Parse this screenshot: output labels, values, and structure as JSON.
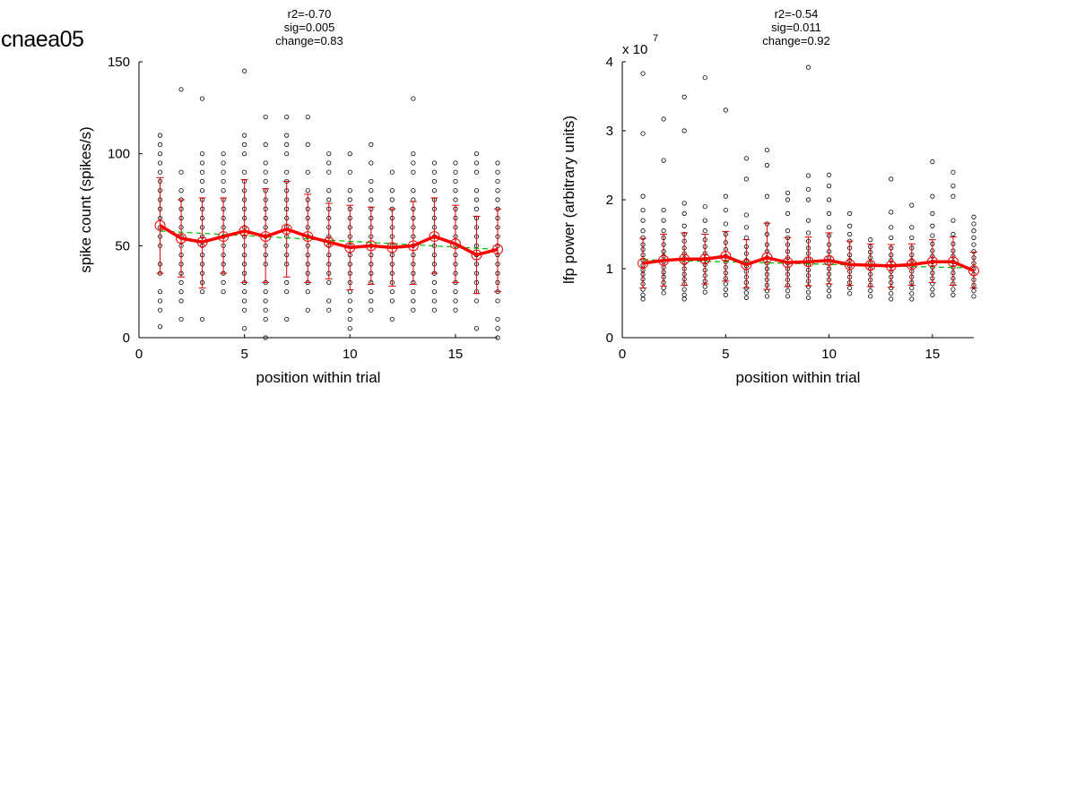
{
  "figure_title": "cnaea05",
  "colors": {
    "mean_line": "#ff0000",
    "errorbar": "#dd0000",
    "fit_line": "#00bb00",
    "points": "#000000"
  },
  "chart_data": [
    {
      "type": "scatter",
      "stats": [
        "r2=-0.70",
        "sig=0.005",
        "change=0.83"
      ],
      "xlabel": "position within trial",
      "ylabel": "spike count (spikes/s)",
      "exponent_label": "",
      "xlim": [
        0,
        17
      ],
      "ylim": [
        0,
        150
      ],
      "xticks": [
        0,
        5,
        10,
        15
      ],
      "xtick_labels": [
        "0",
        "5",
        "10",
        "15"
      ],
      "yticks": [
        0,
        50,
        100,
        150
      ],
      "ytick_labels": [
        "0",
        "50",
        "100",
        "150"
      ],
      "x": [
        1,
        2,
        3,
        4,
        5,
        6,
        7,
        8,
        9,
        10,
        11,
        12,
        13,
        14,
        15,
        16,
        17
      ],
      "mean": [
        61,
        54,
        52,
        55,
        58,
        55,
        59,
        55,
        52,
        49,
        50,
        49,
        50,
        55,
        51,
        45,
        48
      ],
      "err_lower": [
        35,
        33,
        27,
        35,
        30,
        30,
        33,
        30,
        32,
        26,
        29,
        28,
        29,
        35,
        30,
        24,
        25
      ],
      "err_upper": [
        87,
        75,
        76,
        76,
        86,
        81,
        85,
        78,
        73,
        72,
        71,
        70,
        74,
        76,
        72,
        66,
        70
      ],
      "fit_line": {
        "x": [
          1,
          17
        ],
        "y": [
          58,
          48
        ]
      },
      "points": [
        [
          6,
          15,
          20,
          25,
          35,
          40,
          50,
          55,
          60,
          65,
          70,
          75,
          80,
          85,
          90,
          95,
          100,
          105,
          110
        ],
        [
          10,
          20,
          25,
          30,
          35,
          40,
          45,
          50,
          55,
          60,
          65,
          70,
          75,
          80,
          90,
          135
        ],
        [
          10,
          25,
          30,
          35,
          40,
          45,
          50,
          55,
          60,
          65,
          70,
          75,
          80,
          85,
          90,
          95,
          100,
          130
        ],
        [
          25,
          30,
          35,
          40,
          45,
          50,
          55,
          60,
          65,
          70,
          75,
          80,
          85,
          90,
          95,
          100
        ],
        [
          5,
          15,
          20,
          25,
          30,
          35,
          40,
          45,
          50,
          55,
          60,
          65,
          70,
          75,
          80,
          85,
          90,
          100,
          105,
          110,
          145
        ],
        [
          0,
          10,
          15,
          20,
          25,
          30,
          40,
          45,
          50,
          55,
          60,
          65,
          70,
          75,
          80,
          85,
          90,
          95,
          105,
          120
        ],
        [
          10,
          25,
          30,
          40,
          45,
          50,
          55,
          60,
          65,
          70,
          75,
          80,
          85,
          90,
          100,
          105,
          110,
          120
        ],
        [
          15,
          25,
          30,
          35,
          40,
          45,
          50,
          55,
          60,
          65,
          70,
          75,
          80,
          90,
          105,
          120
        ],
        [
          15,
          20,
          30,
          35,
          40,
          45,
          50,
          55,
          60,
          65,
          70,
          75,
          80,
          90,
          95,
          100
        ],
        [
          5,
          10,
          15,
          20,
          25,
          30,
          35,
          40,
          45,
          50,
          55,
          60,
          65,
          70,
          75,
          80,
          90,
          100
        ],
        [
          15,
          20,
          25,
          30,
          35,
          40,
          45,
          50,
          55,
          60,
          65,
          70,
          75,
          80,
          85,
          95,
          105
        ],
        [
          10,
          20,
          25,
          30,
          35,
          40,
          45,
          50,
          55,
          60,
          65,
          70,
          75,
          80,
          90
        ],
        [
          15,
          20,
          25,
          30,
          35,
          40,
          45,
          50,
          55,
          60,
          65,
          70,
          75,
          80,
          90,
          95,
          100,
          130
        ],
        [
          15,
          20,
          25,
          30,
          35,
          40,
          45,
          50,
          55,
          60,
          65,
          70,
          75,
          80,
          85,
          90,
          95
        ],
        [
          15,
          20,
          25,
          30,
          35,
          40,
          45,
          50,
          55,
          60,
          65,
          70,
          75,
          80,
          85,
          90,
          95
        ],
        [
          5,
          20,
          25,
          30,
          35,
          40,
          45,
          50,
          55,
          60,
          65,
          70,
          75,
          80,
          90,
          95,
          100
        ],
        [
          0,
          5,
          10,
          20,
          25,
          30,
          35,
          40,
          45,
          50,
          55,
          60,
          65,
          70,
          75,
          80,
          85,
          90,
          95
        ]
      ]
    },
    {
      "type": "scatter",
      "stats": [
        "r2=-0.54",
        "sig=0.011",
        "change=0.92"
      ],
      "xlabel": "position within trial",
      "ylabel": "lfp power (arbitrary units)",
      "exponent_label": "x 10",
      "exponent_power": "7",
      "xlim": [
        0,
        17
      ],
      "ylim": [
        0,
        4
      ],
      "xticks": [
        0,
        5,
        10,
        15
      ],
      "xtick_labels": [
        "0",
        "5",
        "10",
        "15"
      ],
      "yticks": [
        0,
        1,
        2,
        3,
        4
      ],
      "ytick_labels": [
        "0",
        "1",
        "2",
        "3",
        "4"
      ],
      "x": [
        1,
        2,
        3,
        4,
        5,
        6,
        7,
        8,
        9,
        10,
        11,
        12,
        13,
        14,
        15,
        16,
        17
      ],
      "mean": [
        1.08,
        1.12,
        1.14,
        1.14,
        1.18,
        1.06,
        1.16,
        1.09,
        1.1,
        1.12,
        1.06,
        1.05,
        1.04,
        1.06,
        1.1,
        1.1,
        0.97
      ],
      "err_lower": [
        0.72,
        0.75,
        0.76,
        0.78,
        0.82,
        0.72,
        0.7,
        0.74,
        0.75,
        0.78,
        0.76,
        0.74,
        0.73,
        0.76,
        0.8,
        0.76,
        0.72
      ],
      "err_upper": [
        1.44,
        1.5,
        1.52,
        1.5,
        1.54,
        1.42,
        1.66,
        1.45,
        1.46,
        1.52,
        1.4,
        1.36,
        1.35,
        1.36,
        1.42,
        1.46,
        1.24
      ],
      "fit_line": {
        "x": [
          1,
          17
        ],
        "y": [
          1.13,
          1.01
        ]
      },
      "points": [
        [
          0.56,
          0.62,
          0.7,
          0.78,
          0.85,
          0.92,
          0.98,
          1.05,
          1.12,
          1.2,
          1.28,
          1.35,
          1.45,
          1.55,
          1.7,
          1.85,
          2.05,
          2.96,
          3.83
        ],
        [
          0.65,
          0.72,
          0.8,
          0.88,
          0.95,
          1.02,
          1.1,
          1.18,
          1.25,
          1.35,
          1.45,
          1.55,
          1.7,
          1.85,
          2.57,
          3.17
        ],
        [
          0.56,
          0.62,
          0.7,
          0.78,
          0.85,
          0.92,
          1.0,
          1.08,
          1.15,
          1.22,
          1.3,
          1.4,
          1.5,
          1.62,
          1.8,
          1.95,
          3.0,
          3.49
        ],
        [
          0.66,
          0.74,
          0.82,
          0.9,
          0.98,
          1.06,
          1.14,
          1.22,
          1.32,
          1.42,
          1.55,
          1.7,
          1.9,
          3.77
        ],
        [
          0.62,
          0.7,
          0.78,
          0.86,
          0.94,
          1.02,
          1.1,
          1.18,
          1.28,
          1.38,
          1.5,
          1.65,
          1.85,
          2.05,
          3.3
        ],
        [
          0.58,
          0.65,
          0.72,
          0.8,
          0.88,
          0.96,
          1.04,
          1.12,
          1.22,
          1.32,
          1.45,
          1.6,
          1.78,
          2.3,
          2.6
        ],
        [
          0.6,
          0.68,
          0.76,
          0.84,
          0.92,
          1.0,
          1.08,
          1.16,
          1.25,
          1.35,
          1.5,
          1.65,
          2.05,
          2.5,
          2.72
        ],
        [
          0.6,
          0.68,
          0.76,
          0.84,
          0.92,
          1.0,
          1.08,
          1.16,
          1.25,
          1.35,
          1.45,
          1.55,
          1.8,
          2.0,
          2.1
        ],
        [
          0.58,
          0.66,
          0.74,
          0.82,
          0.9,
          0.98,
          1.06,
          1.14,
          1.22,
          1.3,
          1.4,
          1.52,
          1.7,
          2.0,
          2.15,
          2.35,
          3.92
        ],
        [
          0.6,
          0.68,
          0.76,
          0.84,
          0.92,
          1.0,
          1.08,
          1.16,
          1.25,
          1.35,
          1.48,
          1.6,
          1.8,
          2.0,
          2.2,
          2.36
        ],
        [
          0.64,
          0.72,
          0.8,
          0.88,
          0.96,
          1.04,
          1.12,
          1.2,
          1.3,
          1.4,
          1.5,
          1.62,
          1.8
        ],
        [
          0.6,
          0.68,
          0.76,
          0.84,
          0.92,
          1.0,
          1.08,
          1.16,
          1.24,
          1.32,
          1.42
        ],
        [
          0.56,
          0.64,
          0.72,
          0.8,
          0.88,
          0.96,
          1.04,
          1.12,
          1.2,
          1.3,
          1.45,
          1.6,
          1.82,
          2.3
        ],
        [
          0.56,
          0.64,
          0.72,
          0.8,
          0.88,
          0.96,
          1.04,
          1.12,
          1.2,
          1.3,
          1.45,
          1.6,
          1.92
        ],
        [
          0.62,
          0.7,
          0.78,
          0.86,
          0.94,
          1.02,
          1.1,
          1.18,
          1.26,
          1.36,
          1.48,
          1.62,
          1.8,
          2.05,
          2.55
        ],
        [
          0.62,
          0.7,
          0.78,
          0.86,
          0.94,
          1.02,
          1.1,
          1.18,
          1.26,
          1.36,
          1.5,
          1.7,
          2.05,
          2.2,
          2.4
        ],
        [
          0.6,
          0.68,
          0.76,
          0.84,
          0.92,
          1.0,
          1.08,
          1.16,
          1.25,
          1.35,
          1.45,
          1.55,
          1.65,
          1.75
        ]
      ]
    }
  ]
}
